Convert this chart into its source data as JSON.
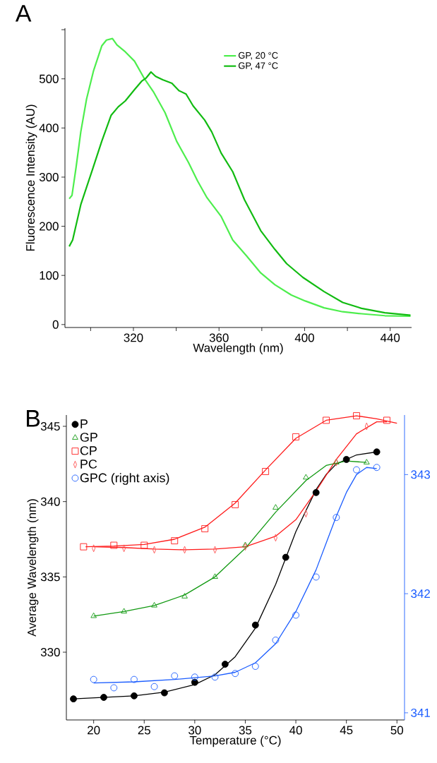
{
  "chart_data": [
    {
      "type": "line",
      "title": "A",
      "xlabel": "Wavelength (nm)",
      "ylabel": "Fluorescence Intensity (AU)",
      "xlim": [
        288,
        450
      ],
      "ylim": [
        -6,
        603
      ],
      "xticks": [
        {
          "value": 300,
          "label": null
        },
        320,
        {
          "value": 340,
          "label": null
        },
        360,
        {
          "value": 380,
          "label": null
        },
        400,
        {
          "value": 420,
          "label": null
        },
        440
      ],
      "yticks": [
        0,
        100,
        200,
        300,
        400,
        500,
        {
          "value": 600,
          "label": null
        }
      ],
      "legend": "top right",
      "series": [
        {
          "name": "GP, 20 °C",
          "color": "#4dee4d",
          "x": [
            290,
            291.3,
            293.2,
            295.4,
            298.1,
            301.4,
            305.2,
            307.4,
            310.2,
            312.3,
            316.2,
            320.5,
            324.9,
            329.3,
            334.8,
            340.2,
            345.7,
            350,
            354.4,
            361,
            366.4,
            373,
            379.5,
            386.1,
            393.8,
            400.3,
            409.1,
            417.8,
            426.6,
            437.5,
            449.5
          ],
          "values": [
            256,
            263,
            320,
            392,
            459,
            517,
            567,
            579,
            582,
            569,
            555,
            536,
            502,
            474,
            431,
            373,
            330,
            292,
            258,
            220,
            172,
            139,
            105,
            81,
            60,
            48,
            34,
            26,
            22,
            18,
            17
          ]
        },
        {
          "name": "GP, 47 °C",
          "color": "#11bb11",
          "x": [
            290,
            291.6,
            295.4,
            300.9,
            305.2,
            309.6,
            312.9,
            316.2,
            320.5,
            323.8,
            326,
            328.2,
            330.4,
            333.7,
            338,
            341.3,
            344.6,
            347.9,
            353.3,
            356.6,
            361,
            366.4,
            371.9,
            379.5,
            386.1,
            391.6,
            399.2,
            409.1,
            417.8,
            426.6,
            437.5,
            449.5
          ],
          "values": [
            159,
            172,
            244,
            316,
            373,
            426,
            443,
            455,
            478,
            495,
            502,
            514,
            505,
            498,
            491,
            476,
            469,
            445,
            416,
            392,
            349,
            311,
            254,
            191,
            153,
            124,
            96,
            67,
            45,
            33,
            24,
            19
          ]
        }
      ]
    },
    {
      "type": "scatter",
      "title": "B",
      "xlabel": "Temperature (°C)",
      "ylabel": "Average Wavelength (nm)",
      "xlim": [
        17.3,
        50.75
      ],
      "ylim": [
        325.5,
        345.75
      ],
      "y2lim": [
        340.94,
        343.5
      ],
      "xticks": [
        20,
        25,
        30,
        35,
        40,
        45,
        50
      ],
      "yticks": [
        330,
        335,
        340,
        345
      ],
      "y2ticks": [
        341,
        342,
        343
      ],
      "legend": "top left",
      "series": [
        {
          "name": "P",
          "color": "#000000",
          "marker": "circle",
          "x": [
            18,
            21,
            24,
            27,
            30,
            33,
            36,
            39,
            42,
            45,
            48
          ],
          "values": [
            326.9,
            327.0,
            327.1,
            327.3,
            328.0,
            329.2,
            331.8,
            336.3,
            340.6,
            342.8,
            343.3
          ]
        },
        {
          "name": "GP",
          "color": "#119911",
          "marker": "triangle",
          "x": [
            20,
            23,
            26,
            29,
            32,
            35,
            38,
            41,
            44,
            47
          ],
          "values": [
            332.4,
            332.7,
            333.1,
            333.7,
            335.0,
            337.1,
            339.6,
            341.6,
            342.6,
            342.6
          ]
        },
        {
          "name": "CP",
          "color": "#ff1a1a",
          "marker": "square",
          "x": [
            19,
            22,
            25,
            28,
            31,
            34,
            37,
            40,
            43,
            46,
            49
          ],
          "values": [
            337.0,
            337.1,
            337.1,
            337.4,
            338.2,
            339.8,
            342.0,
            344.3,
            345.4,
            345.7,
            345.4
          ]
        },
        {
          "name": "PC",
          "color": "#ff5050",
          "marker": "diamond",
          "x": [
            20,
            23,
            26,
            29,
            32,
            35,
            38,
            41,
            44,
            47
          ],
          "values": [
            336.9,
            336.9,
            336.8,
            336.8,
            336.8,
            337.0,
            337.6,
            339.2,
            342.6,
            345.0
          ]
        },
        {
          "name": "GPC (right axis)",
          "color": "#1a5cff",
          "marker": "circle",
          "axis": "y2",
          "x": [
            20,
            22,
            24,
            26,
            28,
            30,
            32,
            34,
            36,
            38,
            40,
            42,
            44,
            46,
            48
          ],
          "values": [
            341.28,
            341.21,
            341.28,
            341.22,
            341.31,
            341.3,
            341.3,
            341.33,
            341.39,
            341.61,
            341.82,
            342.14,
            342.64,
            343.04,
            343.06
          ]
        },
        {
          "type": "line",
          "color": "#000000",
          "x": [
            18,
            21,
            24,
            27,
            30,
            32,
            34,
            36,
            38,
            40,
            42,
            43,
            44,
            46,
            48
          ],
          "values": [
            326.9,
            327.0,
            327.1,
            327.35,
            327.85,
            328.5,
            329.7,
            331.6,
            334.5,
            338.0,
            340.8,
            341.8,
            342.5,
            343.1,
            343.3
          ]
        },
        {
          "type": "line",
          "color": "#119911",
          "x": [
            20,
            23,
            26,
            29,
            32,
            35,
            38,
            41,
            43,
            45,
            47
          ],
          "values": [
            332.4,
            332.7,
            333.1,
            333.8,
            335.0,
            336.9,
            339.3,
            341.4,
            342.4,
            342.7,
            342.6
          ]
        },
        {
          "type": "line",
          "color": "#ff1a1a",
          "x": [
            19.2,
            22,
            25,
            28,
            31,
            34,
            37,
            40,
            43,
            46,
            48,
            50
          ],
          "values": [
            337.0,
            337.05,
            337.15,
            337.5,
            338.3,
            339.9,
            342.1,
            344.2,
            345.4,
            345.7,
            345.5,
            345.2
          ]
        },
        {
          "type": "line",
          "color": "#ff1a1a",
          "x": [
            20,
            23,
            26,
            29,
            32,
            35,
            38,
            40,
            42,
            44,
            46,
            48,
            49
          ],
          "values": [
            337.0,
            336.95,
            336.85,
            336.8,
            336.85,
            337.0,
            337.7,
            338.8,
            340.7,
            342.8,
            344.5,
            345.3,
            345.3
          ]
        },
        {
          "type": "line",
          "color": "#1a5cff",
          "axis": "y2",
          "x": [
            20,
            24,
            28,
            32,
            34,
            36,
            38,
            40,
            42,
            44,
            45,
            46,
            47,
            48
          ],
          "values": [
            341.25,
            341.26,
            341.28,
            341.31,
            341.34,
            341.42,
            341.58,
            341.85,
            342.2,
            342.65,
            342.85,
            343.0,
            343.06,
            343.05
          ]
        }
      ]
    }
  ]
}
